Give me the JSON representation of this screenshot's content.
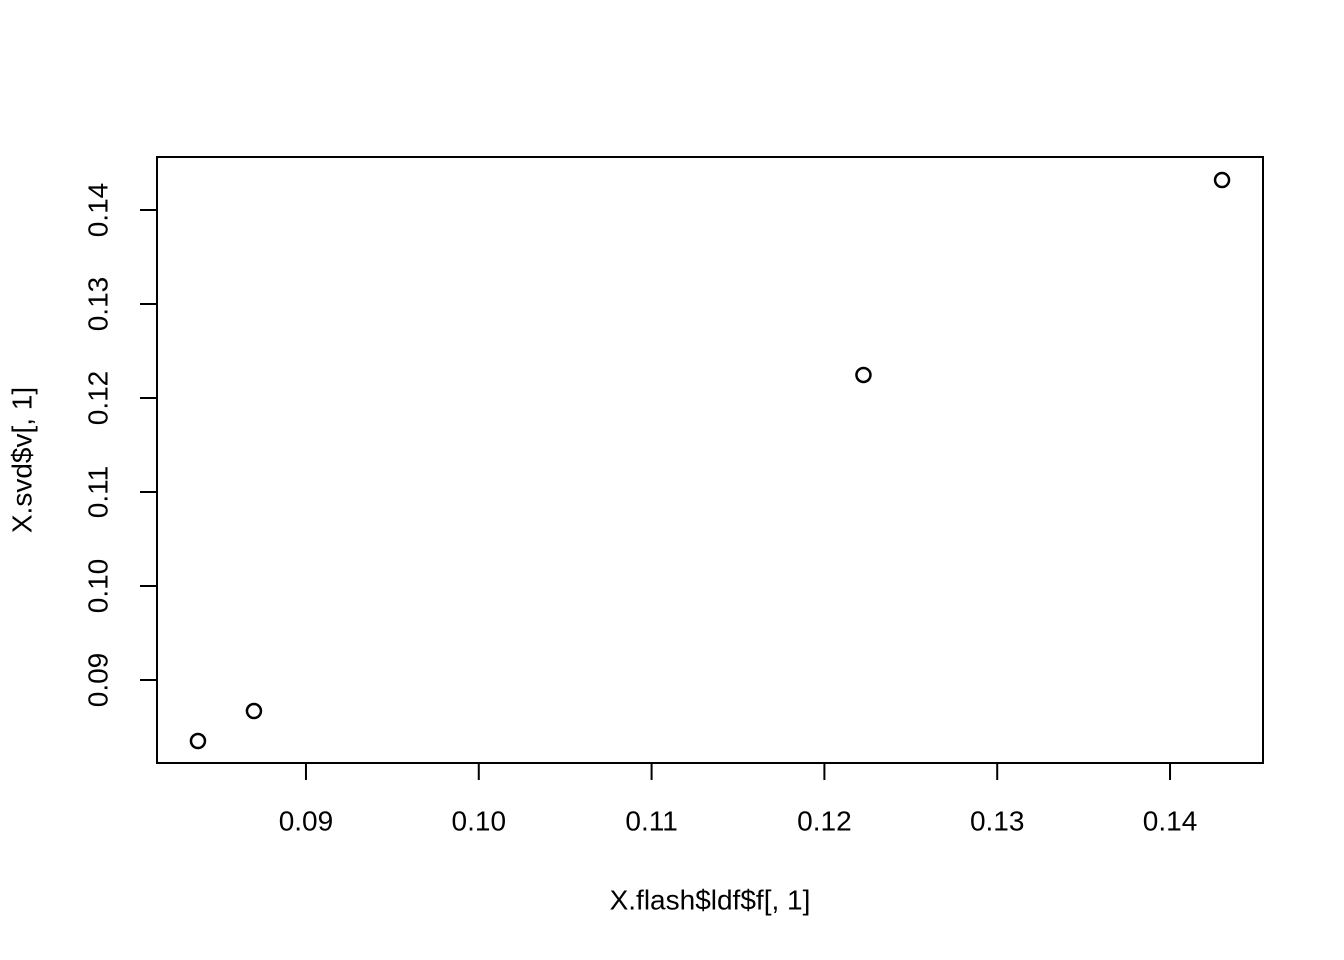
{
  "chart_data": {
    "type": "scatter",
    "x_label": "X.flash$ldf$f[, 1]",
    "y_label": "X.svd$v[, 1]",
    "x": [
      0.08375,
      0.08699,
      0.12226,
      0.14301
    ],
    "values": [
      0.08351,
      0.0867,
      0.12245,
      0.14319
    ],
    "color": "#000000",
    "xlim": [
      0.08138,
      0.14538
    ],
    "ylim": [
      0.08117,
      0.14564
    ],
    "xticks": [
      0.09,
      {
        "value": 0.1,
        "label": "0.10"
      },
      0.11,
      0.12,
      0.13,
      0.14
    ],
    "yticks": [
      0.09,
      {
        "value": 0.1,
        "label": "0.10"
      },
      0.11,
      0.12,
      0.13,
      0.14
    ]
  }
}
